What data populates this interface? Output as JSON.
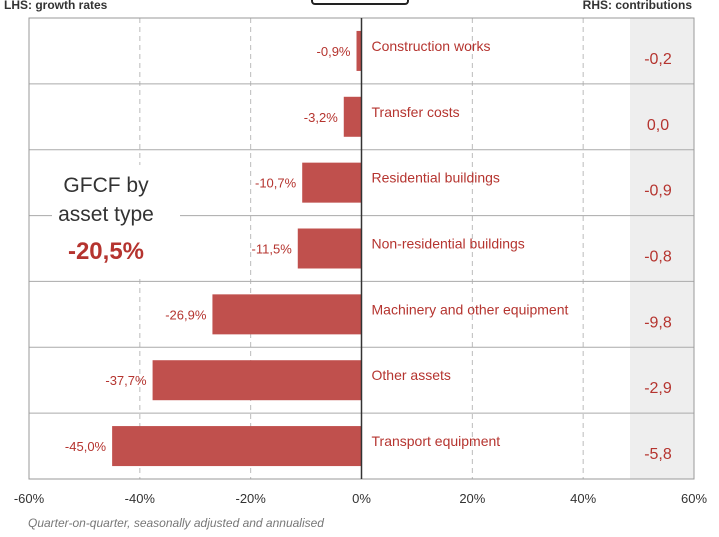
{
  "header": {
    "lhs_label": "LHS: growth rates",
    "rhs_label": "RHS: contributions"
  },
  "annotation": {
    "line1": "GFCF by",
    "line2": "asset type",
    "total": "-20,5%"
  },
  "footnote": "Quarter-on-quarter, seasonally adjusted and annualised",
  "colors": {
    "bar": "#c0504d",
    "text_accent": "#b5342f",
    "contrib_band": "#eeeeee",
    "grid": "#bbbbbb"
  },
  "chart_data": {
    "type": "bar",
    "orientation": "horizontal",
    "categories": [
      "Construction works",
      "Transfer costs",
      "Residential buildings",
      "Non-residential buildings",
      "Machinery and other equipment",
      "Other assets",
      "Transport equipment"
    ],
    "values": [
      -0.9,
      -3.2,
      -10.7,
      -11.5,
      -26.9,
      -37.7,
      -45.0
    ],
    "value_labels": [
      "-0,9%",
      "-3,2%",
      "-10,7%",
      "-11,5%",
      "-26,9%",
      "-37,7%",
      "-45,0%"
    ],
    "contributions": [
      "-0,2",
      "0,0",
      "-0,9",
      "-0,8",
      "-9,8",
      "-2,9",
      "-5,8"
    ],
    "xlim": [
      -60,
      60
    ],
    "xticks": [
      -60,
      -40,
      -20,
      0,
      20,
      40,
      60
    ],
    "xtick_labels": [
      "-60%",
      "-40%",
      "-20%",
      "0%",
      "20%",
      "40%",
      "60%"
    ],
    "grid": true
  }
}
